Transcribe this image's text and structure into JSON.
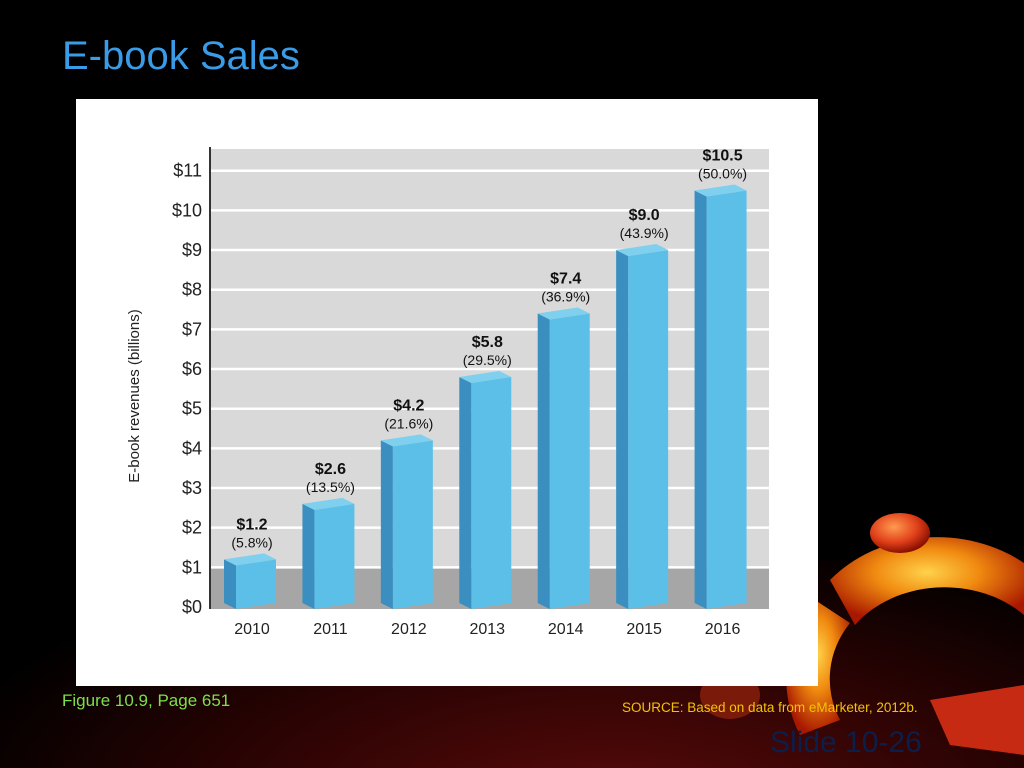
{
  "slide": {
    "title": "E-book Sales",
    "caption": "Figure 10.9, Page 651",
    "source": "SOURCE: Based on data from eMarketer, 2012b.",
    "slide_number": "Slide 10-26"
  },
  "colors": {
    "title": "#3a9be6",
    "bar_front": "#5bbfe8",
    "bar_side": "#3a8fc0",
    "bar_top": "#7fcfee",
    "plot_bg": "#d9d9d9",
    "floor": "#a6a6a6"
  },
  "chart_data": {
    "type": "bar",
    "categories": [
      "2010",
      "2011",
      "2012",
      "2013",
      "2014",
      "2015",
      "2016"
    ],
    "values": [
      1.2,
      2.6,
      4.2,
      5.8,
      7.4,
      9.0,
      10.5
    ],
    "value_labels": [
      "$1.2",
      "$2.6",
      "$4.2",
      "$5.8",
      "$7.4",
      "$9.0",
      "$10.5"
    ],
    "pct_labels": [
      "(5.8%)",
      "(13.5%)",
      "(21.6%)",
      "(29.5%)",
      "(36.9%)",
      "(43.9%)",
      "(50.0%)"
    ],
    "ylabel": "E-book revenues  (billions)",
    "ytick_labels": [
      "$0",
      "$1",
      "$2",
      "$3",
      "$4",
      "$5",
      "$6",
      "$7",
      "$8",
      "$9",
      "$10",
      "$11"
    ],
    "ylim": [
      0,
      11.5
    ],
    "grid": true
  }
}
